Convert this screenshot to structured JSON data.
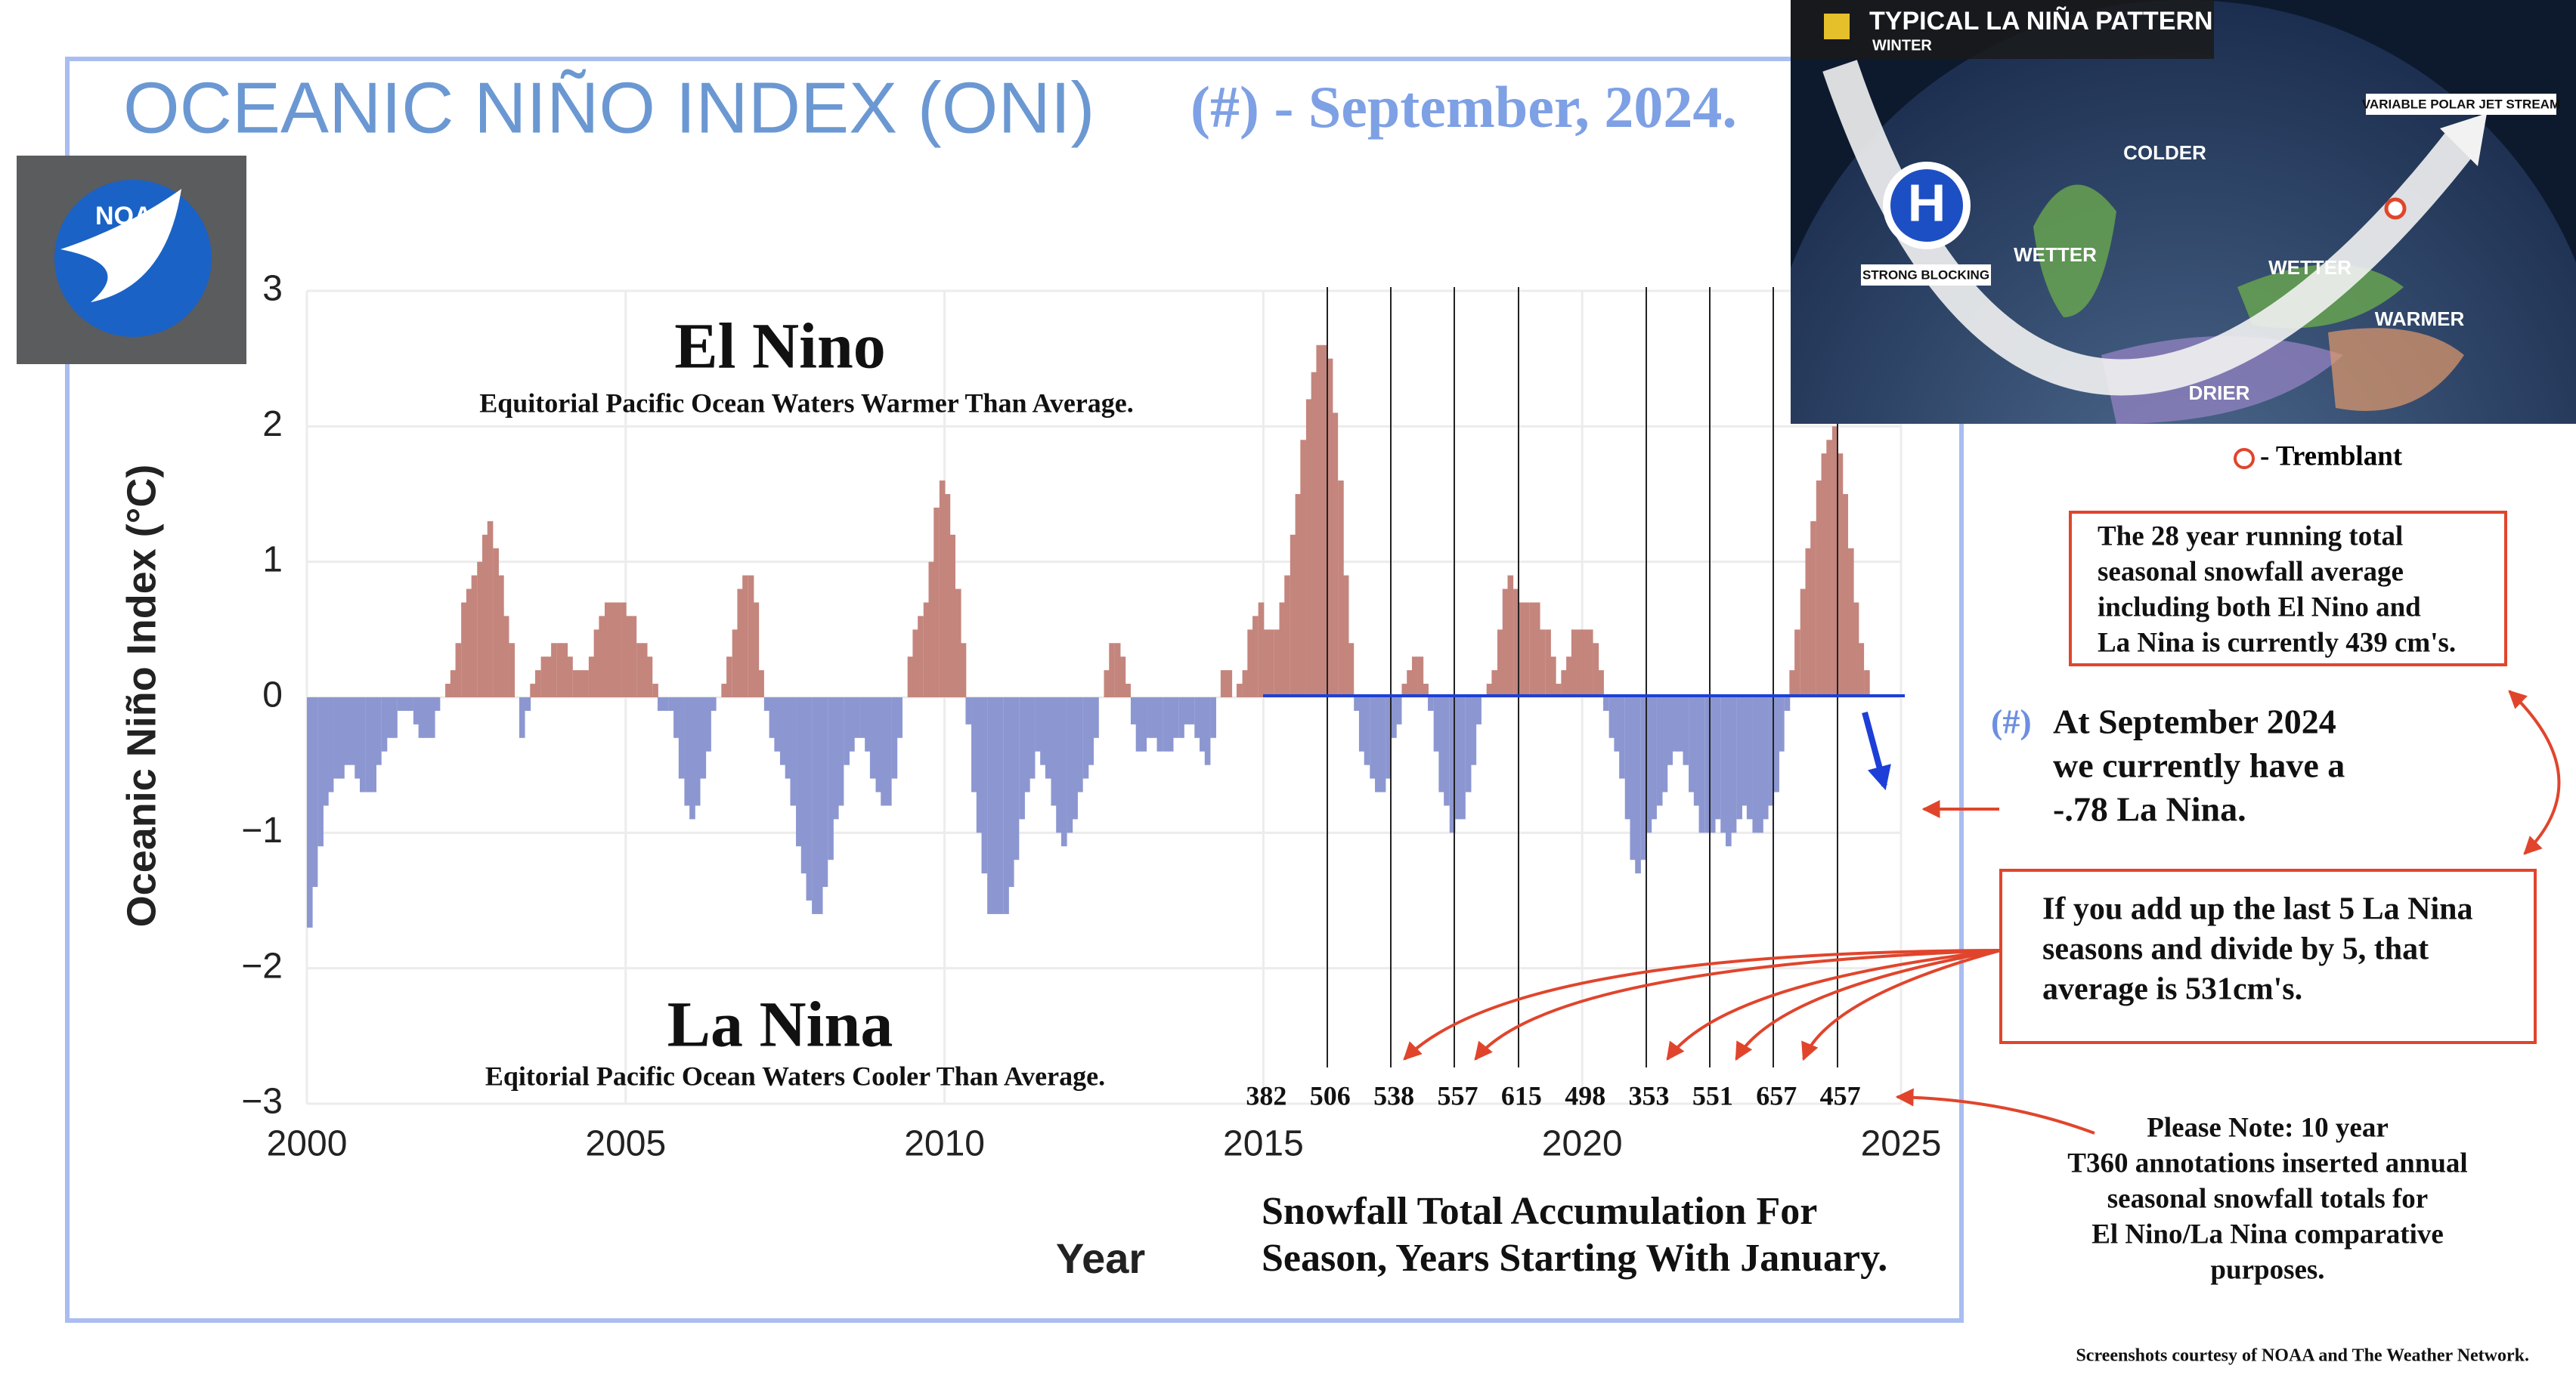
{
  "header": {
    "title": "OCEANIC NIÑO INDEX (ONI)",
    "date": "(#) - September, 2024."
  },
  "logo": "NOAA",
  "chart_data": {
    "type": "bar",
    "xlabel": "Year",
    "ylabel": "Oceanic Niño Index (°C)",
    "x": [
      2000,
      2000.08,
      2000.17,
      2000.25,
      2000.33,
      2000.42,
      2000.5,
      2000.58,
      2000.67,
      2000.75,
      2000.83,
      2000.92,
      2001,
      2001.08,
      2001.17,
      2001.25,
      2001.33,
      2001.42,
      2001.5,
      2001.58,
      2001.67,
      2001.75,
      2001.83,
      2001.92,
      2002,
      2002.08,
      2002.17,
      2002.25,
      2002.33,
      2002.42,
      2002.5,
      2002.58,
      2002.67,
      2002.75,
      2002.83,
      2002.92,
      2003,
      2003.08,
      2003.17,
      2003.25,
      2003.33,
      2003.42,
      2003.5,
      2003.58,
      2003.67,
      2003.75,
      2003.83,
      2003.92,
      2004,
      2004.08,
      2004.17,
      2004.25,
      2004.33,
      2004.42,
      2004.5,
      2004.58,
      2004.67,
      2004.75,
      2004.83,
      2004.92,
      2005,
      2005.08,
      2005.17,
      2005.25,
      2005.33,
      2005.42,
      2005.5,
      2005.58,
      2005.67,
      2005.75,
      2005.83,
      2005.92,
      2006,
      2006.08,
      2006.17,
      2006.25,
      2006.33,
      2006.42,
      2006.5,
      2006.58,
      2006.67,
      2006.75,
      2006.83,
      2006.92,
      2007,
      2007.08,
      2007.17,
      2007.25,
      2007.33,
      2007.42,
      2007.5,
      2007.58,
      2007.67,
      2007.75,
      2007.83,
      2007.92,
      2008,
      2008.08,
      2008.17,
      2008.25,
      2008.33,
      2008.42,
      2008.5,
      2008.58,
      2008.67,
      2008.75,
      2008.83,
      2008.92,
      2009,
      2009.08,
      2009.17,
      2009.25,
      2009.33,
      2009.42,
      2009.5,
      2009.58,
      2009.67,
      2009.75,
      2009.83,
      2009.92,
      2010,
      2010.08,
      2010.17,
      2010.25,
      2010.33,
      2010.42,
      2010.5,
      2010.58,
      2010.67,
      2010.75,
      2010.83,
      2010.92,
      2011,
      2011.08,
      2011.17,
      2011.25,
      2011.33,
      2011.42,
      2011.5,
      2011.58,
      2011.67,
      2011.75,
      2011.83,
      2011.92,
      2012,
      2012.08,
      2012.17,
      2012.25,
      2012.33,
      2012.42,
      2012.5,
      2012.58,
      2012.67,
      2012.75,
      2012.83,
      2012.92,
      2013,
      2013.08,
      2013.17,
      2013.25,
      2013.33,
      2013.42,
      2013.5,
      2013.58,
      2013.67,
      2013.75,
      2013.83,
      2013.92,
      2014,
      2014.08,
      2014.17,
      2014.25,
      2014.33,
      2014.42,
      2014.5,
      2014.58,
      2014.67,
      2014.75,
      2014.83,
      2014.92,
      2015,
      2015.08,
      2015.17,
      2015.25,
      2015.33,
      2015.42,
      2015.5,
      2015.58,
      2015.67,
      2015.75,
      2015.83,
      2015.92,
      2016,
      2016.08,
      2016.17,
      2016.25,
      2016.33,
      2016.42,
      2016.5,
      2016.58,
      2016.67,
      2016.75,
      2016.83,
      2016.92,
      2017,
      2017.08,
      2017.17,
      2017.25,
      2017.33,
      2017.42,
      2017.5,
      2017.58,
      2017.67,
      2017.75,
      2017.83,
      2017.92,
      2018,
      2018.08,
      2018.17,
      2018.25,
      2018.33,
      2018.42,
      2018.5,
      2018.58,
      2018.67,
      2018.75,
      2018.83,
      2018.92,
      2019,
      2019.08,
      2019.17,
      2019.25,
      2019.33,
      2019.42,
      2019.5,
      2019.58,
      2019.67,
      2019.75,
      2019.83,
      2019.92,
      2020,
      2020.08,
      2020.17,
      2020.25,
      2020.33,
      2020.42,
      2020.5,
      2020.58,
      2020.67,
      2020.75,
      2020.83,
      2020.92,
      2021,
      2021.08,
      2021.17,
      2021.25,
      2021.33,
      2021.42,
      2021.5,
      2021.58,
      2021.67,
      2021.75,
      2021.83,
      2021.92,
      2022,
      2022.08,
      2022.17,
      2022.25,
      2022.33,
      2022.42,
      2022.5,
      2022.58,
      2022.67,
      2022.75,
      2022.83,
      2022.92,
      2023,
      2023.08,
      2023.17,
      2023.25,
      2023.33,
      2023.42,
      2023.5,
      2023.58,
      2023.67,
      2023.75,
      2023.83,
      2023.92,
      2024,
      2024.08,
      2024.17,
      2024.25,
      2024.33,
      2024.42
    ],
    "values": [
      -1.7,
      -1.4,
      -1.1,
      -0.8,
      -0.7,
      -0.6,
      -0.6,
      -0.5,
      -0.5,
      -0.6,
      -0.7,
      -0.7,
      -0.7,
      -0.5,
      -0.4,
      -0.3,
      -0.3,
      -0.1,
      -0.1,
      -0.1,
      -0.2,
      -0.3,
      -0.3,
      -0.3,
      -0.1,
      0,
      0.1,
      0.2,
      0.4,
      0.7,
      0.8,
      0.9,
      1.0,
      1.2,
      1.3,
      1.1,
      0.9,
      0.6,
      0.4,
      0,
      -0.3,
      -0.1,
      0.1,
      0.2,
      0.3,
      0.3,
      0.4,
      0.4,
      0.4,
      0.3,
      0.2,
      0.2,
      0.2,
      0.3,
      0.5,
      0.6,
      0.7,
      0.7,
      0.7,
      0.7,
      0.6,
      0.6,
      0.4,
      0.4,
      0.3,
      0.1,
      -0.1,
      -0.1,
      -0.1,
      -0.3,
      -0.6,
      -0.8,
      -0.9,
      -0.8,
      -0.6,
      -0.4,
      -0.1,
      0,
      0.1,
      0.3,
      0.5,
      0.8,
      0.9,
      0.9,
      0.7,
      0.2,
      -0.1,
      -0.3,
      -0.4,
      -0.5,
      -0.6,
      -0.8,
      -1.1,
      -1.3,
      -1.5,
      -1.6,
      -1.6,
      -1.4,
      -1.2,
      -0.9,
      -0.8,
      -0.5,
      -0.4,
      -0.3,
      -0.3,
      -0.4,
      -0.6,
      -0.7,
      -0.8,
      -0.8,
      -0.6,
      -0.3,
      0,
      0.3,
      0.5,
      0.6,
      0.7,
      1.0,
      1.4,
      1.6,
      1.5,
      1.2,
      0.8,
      0.4,
      -0.2,
      -0.7,
      -1.0,
      -1.3,
      -1.6,
      -1.6,
      -1.6,
      -1.6,
      -1.4,
      -1.2,
      -0.9,
      -0.7,
      -0.6,
      -0.4,
      -0.5,
      -0.6,
      -0.8,
      -1.0,
      -1.1,
      -1.0,
      -0.9,
      -0.7,
      -0.6,
      -0.5,
      -0.3,
      0,
      0.2,
      0.4,
      0.4,
      0.3,
      0.1,
      -0.2,
      -0.4,
      -0.4,
      -0.3,
      -0.3,
      -0.4,
      -0.4,
      -0.4,
      -0.3,
      -0.3,
      -0.2,
      -0.2,
      -0.3,
      -0.4,
      -0.5,
      -0.3,
      0,
      0.2,
      0.2,
      0,
      0.1,
      0.2,
      0.5,
      0.6,
      0.7,
      0.5,
      0.5,
      0.5,
      0.7,
      0.9,
      1.2,
      1.5,
      1.9,
      2.2,
      2.4,
      2.6,
      2.6,
      2.5,
      2.1,
      1.6,
      0.9,
      0.4,
      -0.1,
      -0.4,
      -0.5,
      -0.6,
      -0.7,
      -0.7,
      -0.6,
      -0.3,
      -0.2,
      0.1,
      0.2,
      0.3,
      0.3,
      0.1,
      -0.1,
      -0.4,
      -0.7,
      -0.8,
      -1.0,
      -0.9,
      -0.9,
      -0.7,
      -0.5,
      -0.2,
      0,
      0.1,
      0.2,
      0.5,
      0.8,
      0.9,
      0.8,
      0.7,
      0.7,
      0.7,
      0.7,
      0.5,
      0.5,
      0.3,
      0.1,
      0.2,
      0.3,
      0.5,
      0.5,
      0.5,
      0.5,
      0.4,
      0.2,
      -0.1,
      -0.3,
      -0.4,
      -0.6,
      -0.9,
      -1.2,
      -1.3,
      -1.2,
      -1.0,
      -0.9,
      -0.8,
      -0.7,
      -0.5,
      -0.4,
      -0.4,
      -0.5,
      -0.7,
      -0.8,
      -1.0,
      -1.0,
      -1.0,
      -0.9,
      -1.0,
      -1.1,
      -1.0,
      -0.9,
      -0.8,
      -0.9,
      -1.0,
      -1.0,
      -0.9,
      -0.8,
      -0.7,
      -0.4,
      -0.1,
      0.2,
      0.5,
      0.8,
      1.1,
      1.3,
      1.6,
      1.8,
      1.9,
      2.0,
      1.8,
      1.5,
      1.1,
      0.7,
      0.4,
      0.2
    ],
    "color_positive": "#c4857d",
    "color_negative": "#8c97d1",
    "xlim": [
      2000,
      2025
    ],
    "xticks": [
      2000,
      2005,
      2010,
      2015,
      2020,
      2025
    ],
    "ylim": [
      -3,
      3
    ],
    "yticks": [
      {
        "value": -3,
        "label": "−3"
      },
      {
        "value": -2,
        "label": "−2"
      },
      {
        "value": -1,
        "label": "−1"
      },
      0,
      1,
      2,
      3
    ],
    "grid": true,
    "annotations": {
      "el_nino": "El Nino",
      "el_nino_note": "Equitorial Pacific Ocean Waters Warmer Than Average.",
      "la_nina": "La Nina",
      "la_nina_note": "Eqitorial Pacific Ocean Waters Cooler Than Average."
    },
    "snowfall": {
      "x": [
        2015,
        2016,
        2017,
        2018,
        2019,
        2020,
        2021,
        2022,
        2023,
        2024
      ],
      "values": [
        382,
        506,
        538,
        557,
        615,
        498,
        353,
        551,
        657,
        457
      ],
      "caption": [
        "Snowfall Total Accumulation For",
        "Season, Years Starting With January."
      ]
    },
    "current": {
      "x": 2024.8,
      "value": -0.78,
      "color": "#1d3fd8"
    }
  },
  "map": {
    "title": "TYPICAL LA NIÑA PATTERN",
    "subtitle": "WINTER",
    "jet": "VARIABLE POLAR JET STREAM",
    "colder": "COLDER",
    "blocking": "STRONG BLOCKING",
    "high": "H",
    "wetter_west": "WETTER",
    "wetter_east": "WETTER",
    "warmer": "WARMER",
    "drier": "DRIER"
  },
  "tremblant": "- Tremblant",
  "notes": {
    "running_average": [
      "The 28 year running total",
      "seasonal snowfall average",
      "including both El Nino and",
      "La Nina is currently 439 cm's."
    ],
    "current": {
      "marker": "(#)",
      "lines": [
        "At September 2024",
        "we currently have a",
        "-.78 La Nina."
      ]
    },
    "la_nina_average": [
      "If you add up the last 5 La Nina",
      "seasons and divide by 5, that",
      "average is 531cm's."
    ],
    "please_note": [
      "Please Note:  10 year",
      "T360 annotations inserted annual",
      "seasonal snowfall totals for",
      "El Nino/La Nina comparative",
      "purposes."
    ],
    "credit": "Screenshots courtesy of NOAA and The Weather Network."
  }
}
